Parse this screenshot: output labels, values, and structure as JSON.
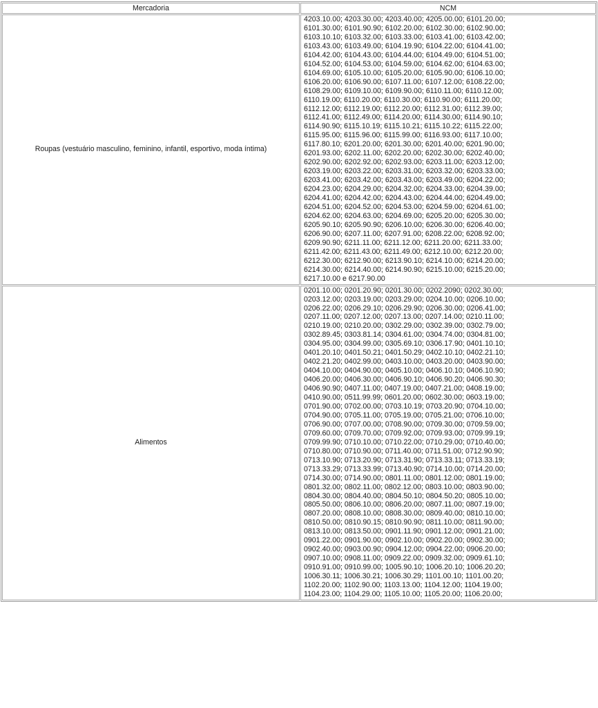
{
  "table": {
    "headers": [
      "Mercadoria",
      "NCM"
    ],
    "rows": [
      {
        "mercadoria": "Roupas (vestuário masculino, feminino, infantil, esportivo, moda íntima)",
        "ncm_lines": [
          "4203.10.00; 4203.30.00; 4203.40.00; 4205.00.00; 6101.20.00;",
          "6101.30.00; 6101.90.90; 6102.20.00; 6102.30.00; 6102.90.00;",
          "6103.10.10; 6103.32.00; 6103.33.00; 6103.41.00; 6103.42.00;",
          "6103.43.00; 6103.49.00; 6104.19.90; 6104.22.00; 6104.41.00;",
          "6104.42.00; 6104.43.00; 6104.44.00; 6104.49.00; 6104.51.00;",
          "6104.52.00; 6104.53.00; 6104.59.00; 6104.62.00; 6104.63.00;",
          "6104.69.00; 6105.10.00; 6105.20.00; 6105.90.00; 6106.10.00;",
          "6106.20.00; 6106.90.00; 6107.11.00; 6107.12.00; 6108.22.00;",
          "6108.29.00; 6109.10.00; 6109.90.00; 6110.11.00; 6110.12.00;",
          "6110.19.00; 6110.20.00; 6110.30.00; 6110.90.00; 6111.20.00;",
          "6112.12.00; 6112.19.00; 6112.20.00; 6112.31.00; 6112.39.00;",
          "6112.41.00; 6112.49.00; 6114.20.00; 6114.30.00; 6114.90.10;",
          "6114.90.90; 6115.10.19; 6115.10.21; 6115.10.22; 6115.22.00;",
          "6115.95.00; 6115.96.00; 6115.99.00; 6116.93.00; 6117.10.00;",
          "6117.80.10; 6201.20.00; 6201.30.00; 6201.40.00; 6201.90.00;",
          "6201.93.00; 6202.11.00; 6202.20.00; 6202.30.00; 6202.40.00;",
          "6202.90.00; 6202.92.00; 6202.93.00; 6203.11.00; 6203.12.00;",
          "6203.19.00; 6203.22.00; 6203.31.00; 6203.32.00; 6203.33.00;",
          "6203.41.00; 6203.42.00; 6203.43.00; 6203.49.00; 6204.22.00;",
          "6204.23.00; 6204.29.00; 6204.32.00; 6204.33.00; 6204.39.00;",
          "6204.41.00; 6204.42.00; 6204.43.00; 6204.44.00; 6204.49.00;",
          "6204.51.00; 6204.52.00; 6204.53.00; 6204.59.00; 6204.61.00;",
          "6204.62.00; 6204.63.00; 6204.69.00; 6205.20.00; 6205.30.00;",
          "6205.90.10; 6205.90.90; 6206.10.00; 6206.30.00; 6206.40.00;",
          "6206.90.00; 6207.11.00; 6207.91.00; 6208.22.00; 6208.92.00;",
          "6209.90.90; 6211.11.00; 6211.12.00; 6211.20.00; 6211.33.00;",
          "6211.42.00; 6211.43.00; 6211.49.00; 6212.10.00; 6212.20.00;",
          "6212.30.00; 6212.90.00; 6213.90.10; 6214.10.00; 6214.20.00;",
          "6214.30.00; 6214.40.00; 6214.90.90; 6215.10.00; 6215.20.00;",
          "6217.10.00 e 6217.90.00"
        ]
      },
      {
        "mercadoria": "Alimentos",
        "ncm_lines": [
          "0201.10.00; 0201.20.90; 0201.30.00; 0202.2090; 0202.30.00;",
          "0203.12.00; 0203.19.00; 0203.29.00; 0204.10.00; 0206.10.00;",
          "0206.22.00; 0206.29.10; 0206.29.90; 0206.30.00; 0206.41.00;",
          "0207.11.00; 0207.12.00; 0207.13.00; 0207.14.00; 0210.11.00;",
          "0210.19.00; 0210.20.00; 0302.29.00; 0302.39.00; 0302.79.00;",
          "0302.89.45; 0303.81.14; 0304.61.00; 0304.74.00; 0304.81.00;",
          "0304.95.00; 0304.99.00; 0305.69.10; 0306.17.90; 0401.10.10;",
          "0401.20.10; 0401.50.21; 0401.50.29; 0402.10.10; 0402.21.10;",
          "0402.21.20; 0402.99.00; 0403.10.00; 0403.20.00; 0403.90.00;",
          "0404.10.00; 0404.90.00; 0405.10.00; 0406.10.10; 0406.10.90;",
          "0406.20.00; 0406.30.00; 0406.90.10; 0406.90.20; 0406.90.30;",
          "0406.90.90; 0407.11.00; 0407.19.00; 0407.21.00; 0408.19.00;",
          "0410.90.00; 0511.99.99; 0601.20.00; 0602.30.00; 0603.19.00;",
          "0701.90.00; 0702.00.00; 0703.10.19; 0703.20.90; 0704.10.00;",
          "0704.90.00; 0705.11.00; 0705.19.00; 0705.21.00; 0706.10.00;",
          "0706.90.00; 0707.00.00; 0708.90.00; 0709.30.00; 0709.59.00;",
          "0709.60.00; 0709.70.00; 0709.92.00; 0709.93.00; 0709.99.19;",
          "0709.99.90; 0710.10.00; 0710.22.00; 0710.29.00; 0710.40.00;",
          "0710.80.00; 0710.90.00; 0711.40.00; 0711.51.00; 0712.90.90;",
          "0713.10.90; 0713.20.90; 0713.31.90; 0713.33.11; 0713.33.19;",
          "0713.33.29; 0713.33.99; 0713.40.90; 0714.10.00; 0714.20.00;",
          "0714.30.00; 0714.90.00; 0801.11.00; 0801.12.00; 0801.19.00;",
          "0801.32.00; 0802.11.00; 0802.12.00; 0803.10.00; 0803.90.00;",
          "0804.30.00; 0804.40.00; 0804.50.10; 0804.50.20; 0805.10.00;",
          "0805.50.00; 0806.10.00; 0806.20.00; 0807.11.00; 0807.19.00;",
          "0807.20.00; 0808.10.00; 0808.30.00; 0809.40.00; 0810.10.00;",
          "0810.50.00; 0810.90.15; 0810.90.90; 0811.10.00; 0811.90.00;",
          "0813.10.00; 0813.50.00; 0901.11.90; 0901.12.00; 0901.21.00;",
          "0901.22.00; 0901.90.00; 0902.10.00; 0902.20.00; 0902.30.00;",
          "0902.40.00; 0903.00.90; 0904.12.00; 0904.22.00; 0906.20.00;",
          "0907.10.00; 0908.11.00; 0909.22.00; 0909.32.00; 0909.61.10;",
          "0910.91.00; 0910.99.00; 1005.90.10; 1006.20.10; 1006.20.20;",
          "1006.30.11; 1006.30.21; 1006.30.29; 1101.00.10; 1101.00.20;",
          "1102.20.00; 1102.90.00; 1103.13.00; 1104.12.00; 1104.19.00;",
          "1104.23.00; 1104.29.00; 1105.10.00; 1105.20.00; 1106.20.00;"
        ]
      }
    ]
  }
}
